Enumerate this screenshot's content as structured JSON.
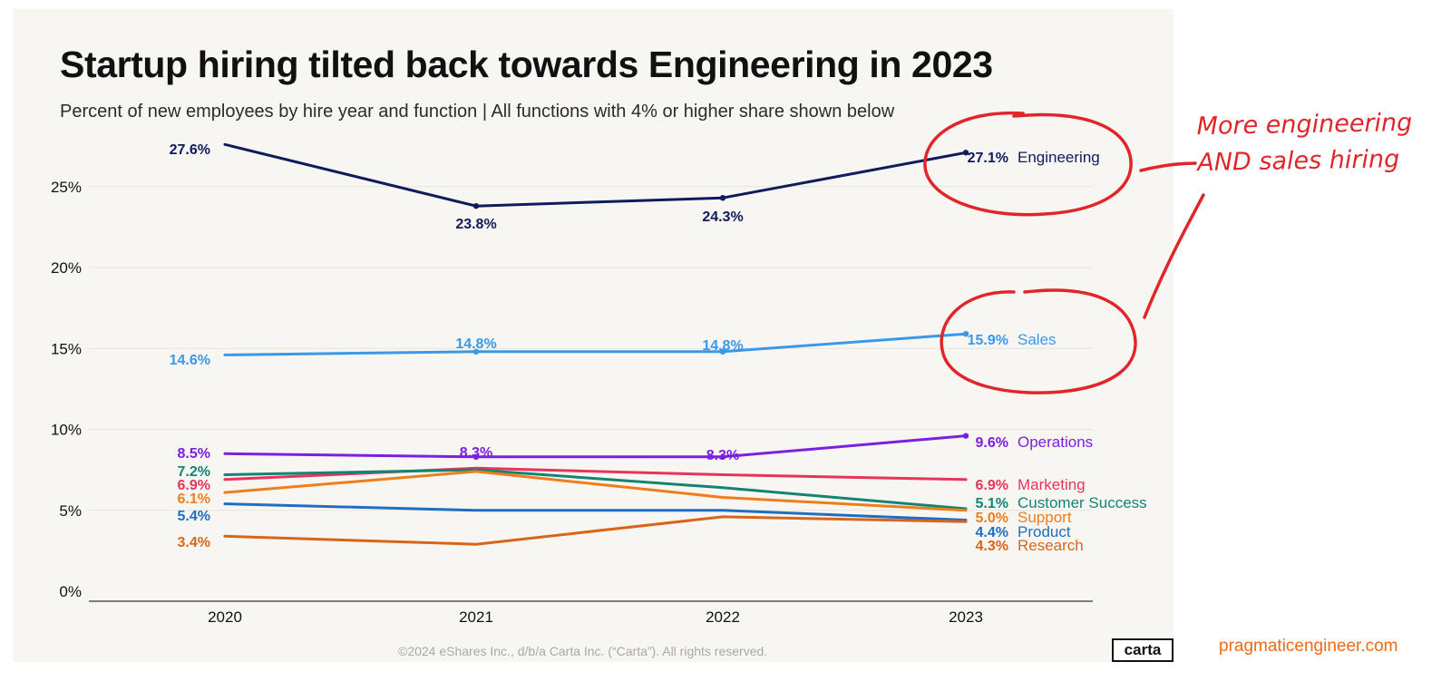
{
  "title": "Startup hiring tilted back towards Engineering in 2023",
  "subtitle": "Percent of new employees by hire year and function | All functions with 4% or higher share shown below",
  "footer": {
    "copyright": "©2024 eShares Inc., d/b/a Carta Inc. (“Carta”). All rights reserved.",
    "logo_text": "carta",
    "site": "pragmaticengineer.com"
  },
  "annotation": {
    "line1": "More engineering",
    "line2": "AND sales hiring"
  },
  "colors": {
    "card_background": "#f8f6f2",
    "annotation": "#e0262a",
    "site": "#f06a12"
  },
  "chart_data": {
    "type": "line",
    "x": [
      "2020",
      "2021",
      "2022",
      "2023"
    ],
    "ylim": [
      0,
      28
    ],
    "yticks": [
      0,
      5,
      10,
      15,
      20,
      25
    ],
    "ytick_labels": [
      "0%",
      "5%",
      "10%",
      "15%",
      "20%",
      "25%"
    ],
    "grid": true,
    "series": [
      {
        "name": "Engineering",
        "color": "#0f1b5c",
        "values": [
          27.6,
          23.8,
          24.3,
          27.1
        ],
        "labels": [
          "27.6%",
          "23.8%",
          "24.3%",
          "27.1%"
        ],
        "labeled": [
          true,
          true,
          true,
          true
        ],
        "markers": true
      },
      {
        "name": "Sales",
        "color": "#3a98e8",
        "values": [
          14.6,
          14.8,
          14.8,
          15.9
        ],
        "labels": [
          "14.6%",
          "14.8%",
          "14.8%",
          "15.9%"
        ],
        "labeled": [
          true,
          true,
          true,
          true
        ],
        "markers": true
      },
      {
        "name": "Operations",
        "color": "#7b1fe0",
        "values": [
          8.5,
          8.3,
          8.3,
          9.6
        ],
        "labels": [
          "8.5%",
          "8.3%",
          "8.3%",
          "9.6%"
        ],
        "labeled": [
          true,
          true,
          true,
          true
        ],
        "markers": true
      },
      {
        "name": "Marketing",
        "color": "#e8335a",
        "values": [
          6.9,
          7.6,
          7.2,
          6.9
        ],
        "labels": [
          "6.9%",
          "",
          "",
          "6.9%"
        ],
        "labeled": [
          true,
          false,
          false,
          true
        ],
        "markers": false
      },
      {
        "name": "Customer Success",
        "color": "#128572",
        "values": [
          7.2,
          7.5,
          6.4,
          5.1
        ],
        "labels": [
          "7.2%",
          "",
          "",
          "5.1%"
        ],
        "labeled": [
          true,
          false,
          false,
          true
        ],
        "markers": false
      },
      {
        "name": "Support",
        "color": "#ef7d1b",
        "values": [
          6.1,
          7.4,
          5.8,
          5.0
        ],
        "labels": [
          "6.1%",
          "",
          "",
          "5.0%"
        ],
        "labeled": [
          true,
          false,
          false,
          true
        ],
        "markers": false
      },
      {
        "name": "Product",
        "color": "#1e6fc2",
        "values": [
          5.4,
          5.0,
          5.0,
          4.4
        ],
        "labels": [
          "5.4%",
          "",
          "",
          "4.4%"
        ],
        "labeled": [
          true,
          false,
          false,
          true
        ],
        "markers": false
      },
      {
        "name": "Research",
        "color": "#d9651a",
        "values": [
          3.4,
          2.9,
          4.6,
          4.3
        ],
        "labels": [
          "3.4%",
          "",
          "",
          "4.3%"
        ],
        "labeled": [
          true,
          false,
          false,
          true
        ],
        "markers": false
      }
    ]
  }
}
